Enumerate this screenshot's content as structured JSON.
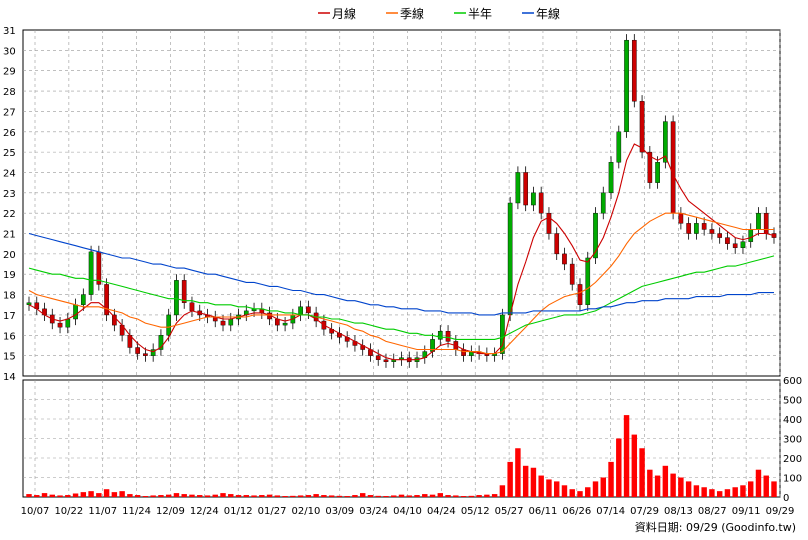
{
  "legend": {
    "items": [
      {
        "label": "月線",
        "color": "#cc0000"
      },
      {
        "label": "季線",
        "color": "#ff6600"
      },
      {
        "label": "半年",
        "color": "#00cc00"
      },
      {
        "label": "年線",
        "color": "#0044cc"
      }
    ]
  },
  "source_note": "資料日期: 09/29  (Goodinfo.tw)",
  "colors": {
    "up": "#00aa00",
    "down": "#cc0000",
    "volume": "#ff0000",
    "grid": "#999999",
    "frame": "#000000"
  },
  "chart_data": [
    {
      "type": "candlestick",
      "ylim": [
        14,
        31
      ],
      "yticks": [
        14,
        15,
        16,
        17,
        18,
        19,
        20,
        21,
        22,
        23,
        24,
        25,
        26,
        27,
        28,
        29,
        30,
        31
      ],
      "xlabels": [
        "10/07",
        "10/22",
        "11/07",
        "11/24",
        "12/09",
        "12/24",
        "01/12",
        "01/27",
        "02/10",
        "03/09",
        "03/24",
        "04/10",
        "04/24",
        "05/12",
        "05/27",
        "06/11",
        "06/26",
        "07/14",
        "07/29",
        "08/13",
        "08/27",
        "09/11",
        "09/29"
      ],
      "close_approx": [
        17.6,
        17.3,
        17.0,
        16.6,
        16.4,
        16.8,
        17.5,
        18.0,
        20.1,
        18.5,
        17.0,
        16.5,
        16.0,
        15.4,
        15.1,
        15.0,
        15.3,
        16.0,
        17.0,
        18.7,
        17.6,
        17.2,
        17.0,
        16.9,
        16.7,
        16.5,
        16.8,
        17.0,
        17.2,
        17.3,
        17.1,
        16.8,
        16.5,
        16.6,
        17.0,
        17.4,
        17.1,
        16.7,
        16.3,
        16.1,
        15.9,
        15.7,
        15.5,
        15.3,
        15.0,
        14.8,
        14.7,
        14.8,
        14.9,
        14.7,
        14.9,
        15.2,
        15.8,
        16.2,
        15.7,
        15.3,
        15.0,
        15.2,
        15.1,
        15.0,
        15.1,
        17.0,
        22.5,
        24.0,
        22.4,
        23.0,
        22.0,
        21.0,
        20.0,
        19.5,
        18.5,
        17.5,
        19.8,
        22.0,
        23.0,
        24.5,
        26.0,
        30.5,
        27.5,
        25.0,
        23.5,
        24.5,
        26.5,
        22.0,
        21.5,
        21.0,
        21.5,
        21.2,
        21.0,
        20.8,
        20.5,
        20.3,
        20.6,
        21.2,
        22.0,
        21.0,
        20.8
      ],
      "moving_averages": [
        {
          "label": "月線",
          "values": [
            17.5,
            17.3,
            17.0,
            16.8,
            16.7,
            16.8,
            17.0,
            17.3,
            17.6,
            17.6,
            17.3,
            16.9,
            16.5,
            16.0,
            15.6,
            15.3,
            15.2,
            15.4,
            15.9,
            16.6,
            17.0,
            17.2,
            17.1,
            17.0,
            16.9,
            16.8,
            16.8,
            16.9,
            17.0,
            17.1,
            17.1,
            17.0,
            16.8,
            16.7,
            16.8,
            17.0,
            17.0,
            16.8,
            16.5,
            16.3,
            16.1,
            15.9,
            15.7,
            15.5,
            15.3,
            15.1,
            14.9,
            14.8,
            14.8,
            14.8,
            14.8,
            14.9,
            15.2,
            15.5,
            15.6,
            15.5,
            15.3,
            15.2,
            15.1,
            15.1,
            15.1,
            15.5,
            17.0,
            18.5,
            19.6,
            20.8,
            21.6,
            21.8,
            21.5,
            21.0,
            20.4,
            19.7,
            19.6,
            20.1,
            20.8,
            21.8,
            23.0,
            24.6,
            25.4,
            25.2,
            24.8,
            24.6,
            24.8,
            23.9,
            23.2,
            22.6,
            22.3,
            22.0,
            21.7,
            21.4,
            21.1,
            20.8,
            20.7,
            20.8,
            21.0,
            21.0,
            20.9
          ]
        },
        {
          "label": "季線",
          "values": [
            18.2,
            18.0,
            17.9,
            17.8,
            17.7,
            17.6,
            17.5,
            17.4,
            17.4,
            17.4,
            17.3,
            17.2,
            17.1,
            16.9,
            16.8,
            16.6,
            16.5,
            16.4,
            16.4,
            16.5,
            16.6,
            16.7,
            16.8,
            16.9,
            16.9,
            16.9,
            16.9,
            16.9,
            16.9,
            17.0,
            17.0,
            17.0,
            17.0,
            17.0,
            17.0,
            17.0,
            17.0,
            16.9,
            16.8,
            16.7,
            16.6,
            16.5,
            16.3,
            16.2,
            16.0,
            15.9,
            15.7,
            15.6,
            15.5,
            15.4,
            15.3,
            15.3,
            15.3,
            15.3,
            15.3,
            15.3,
            15.2,
            15.2,
            15.2,
            15.1,
            15.1,
            15.2,
            15.6,
            16.0,
            16.4,
            16.8,
            17.2,
            17.5,
            17.7,
            17.9,
            18.0,
            18.1,
            18.3,
            18.6,
            19.0,
            19.4,
            19.9,
            20.5,
            21.0,
            21.3,
            21.6,
            21.8,
            22.0,
            22.0,
            22.0,
            21.9,
            21.8,
            21.7,
            21.6,
            21.5,
            21.4,
            21.3,
            21.2,
            21.2,
            21.2,
            21.2,
            21.2
          ]
        },
        {
          "label": "半年",
          "values": [
            19.3,
            19.2,
            19.1,
            19.0,
            19.0,
            18.9,
            18.8,
            18.8,
            18.7,
            18.7,
            18.6,
            18.5,
            18.4,
            18.3,
            18.2,
            18.1,
            18.0,
            17.9,
            17.8,
            17.8,
            17.7,
            17.7,
            17.6,
            17.6,
            17.5,
            17.5,
            17.5,
            17.4,
            17.4,
            17.3,
            17.3,
            17.2,
            17.2,
            17.1,
            17.1,
            17.0,
            17.0,
            16.9,
            16.9,
            16.8,
            16.8,
            16.7,
            16.6,
            16.6,
            16.5,
            16.4,
            16.3,
            16.3,
            16.2,
            16.1,
            16.1,
            16.0,
            16.0,
            15.9,
            15.9,
            15.8,
            15.8,
            15.8,
            15.8,
            15.8,
            15.8,
            15.9,
            16.1,
            16.3,
            16.5,
            16.6,
            16.7,
            16.8,
            16.9,
            17.0,
            17.0,
            17.0,
            17.1,
            17.2,
            17.4,
            17.6,
            17.8,
            18.0,
            18.2,
            18.4,
            18.5,
            18.6,
            18.7,
            18.8,
            18.9,
            19.0,
            19.1,
            19.1,
            19.2,
            19.3,
            19.4,
            19.4,
            19.5,
            19.6,
            19.7,
            19.8,
            19.9
          ]
        },
        {
          "label": "年線",
          "values": [
            21.0,
            20.9,
            20.8,
            20.7,
            20.6,
            20.5,
            20.4,
            20.3,
            20.2,
            20.1,
            20.0,
            19.9,
            19.8,
            19.8,
            19.7,
            19.6,
            19.5,
            19.5,
            19.4,
            19.3,
            19.3,
            19.2,
            19.1,
            19.0,
            19.0,
            18.9,
            18.8,
            18.7,
            18.6,
            18.6,
            18.5,
            18.4,
            18.4,
            18.3,
            18.2,
            18.2,
            18.1,
            18.0,
            18.0,
            17.9,
            17.8,
            17.7,
            17.7,
            17.6,
            17.5,
            17.5,
            17.4,
            17.4,
            17.3,
            17.3,
            17.3,
            17.2,
            17.2,
            17.2,
            17.1,
            17.1,
            17.1,
            17.1,
            17.0,
            17.0,
            17.0,
            17.1,
            17.1,
            17.1,
            17.1,
            17.2,
            17.2,
            17.2,
            17.2,
            17.2,
            17.2,
            17.2,
            17.3,
            17.3,
            17.4,
            17.4,
            17.5,
            17.6,
            17.6,
            17.7,
            17.7,
            17.7,
            17.8,
            17.8,
            17.8,
            17.8,
            17.9,
            17.9,
            17.9,
            17.9,
            18.0,
            18.0,
            18.0,
            18.0,
            18.1,
            18.1,
            18.1
          ]
        }
      ]
    },
    {
      "type": "bar",
      "ylim": [
        0,
        600
      ],
      "yticks": [
        0,
        100,
        200,
        300,
        400,
        500,
        600
      ],
      "volume_approx": [
        15,
        10,
        20,
        12,
        8,
        10,
        18,
        25,
        30,
        20,
        40,
        25,
        30,
        15,
        10,
        5,
        8,
        10,
        12,
        20,
        15,
        12,
        10,
        8,
        12,
        20,
        15,
        10,
        10,
        8,
        10,
        12,
        8,
        5,
        6,
        8,
        10,
        15,
        10,
        8,
        6,
        5,
        10,
        20,
        10,
        6,
        5,
        8,
        12,
        8,
        10,
        15,
        12,
        20,
        10,
        8,
        5,
        6,
        10,
        12,
        15,
        60,
        180,
        250,
        160,
        150,
        110,
        90,
        80,
        60,
        40,
        30,
        50,
        80,
        100,
        180,
        300,
        420,
        320,
        250,
        140,
        110,
        160,
        120,
        100,
        80,
        60,
        50,
        40,
        30,
        40,
        50,
        60,
        80,
        140,
        110,
        80
      ]
    }
  ]
}
